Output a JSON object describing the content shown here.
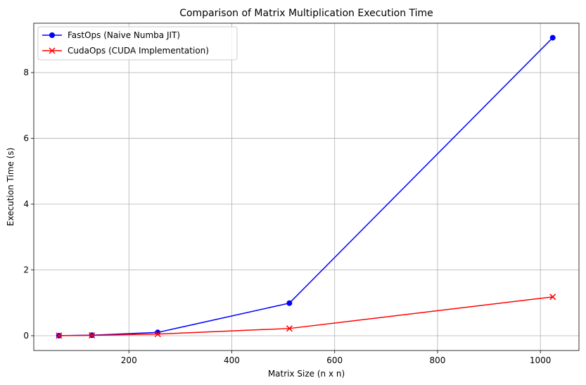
{
  "chart_data": {
    "type": "line",
    "title": "Comparison of Matrix Multiplication Execution Time",
    "xlabel": "Matrix Size (n x n)",
    "ylabel": "Execution Time (s)",
    "xlim": [
      15,
      1075
    ],
    "ylim": [
      -0.45,
      9.5
    ],
    "xticks": [
      200,
      400,
      600,
      800,
      1000
    ],
    "yticks": [
      0,
      2,
      4,
      6,
      8
    ],
    "grid": true,
    "legend_position": "top-left",
    "series": [
      {
        "name": "FastOps (Naive Numba JIT)",
        "color": "#0000ff",
        "marker": "circle",
        "x": [
          64,
          128,
          256,
          512,
          1024
        ],
        "y": [
          0.003,
          0.015,
          0.1,
          0.99,
          9.06
        ]
      },
      {
        "name": "CudaOps (CUDA Implementation)",
        "color": "#ff0000",
        "marker": "x",
        "x": [
          64,
          128,
          256,
          512,
          1024
        ],
        "y": [
          0.003,
          0.01,
          0.05,
          0.22,
          1.18
        ]
      }
    ]
  }
}
